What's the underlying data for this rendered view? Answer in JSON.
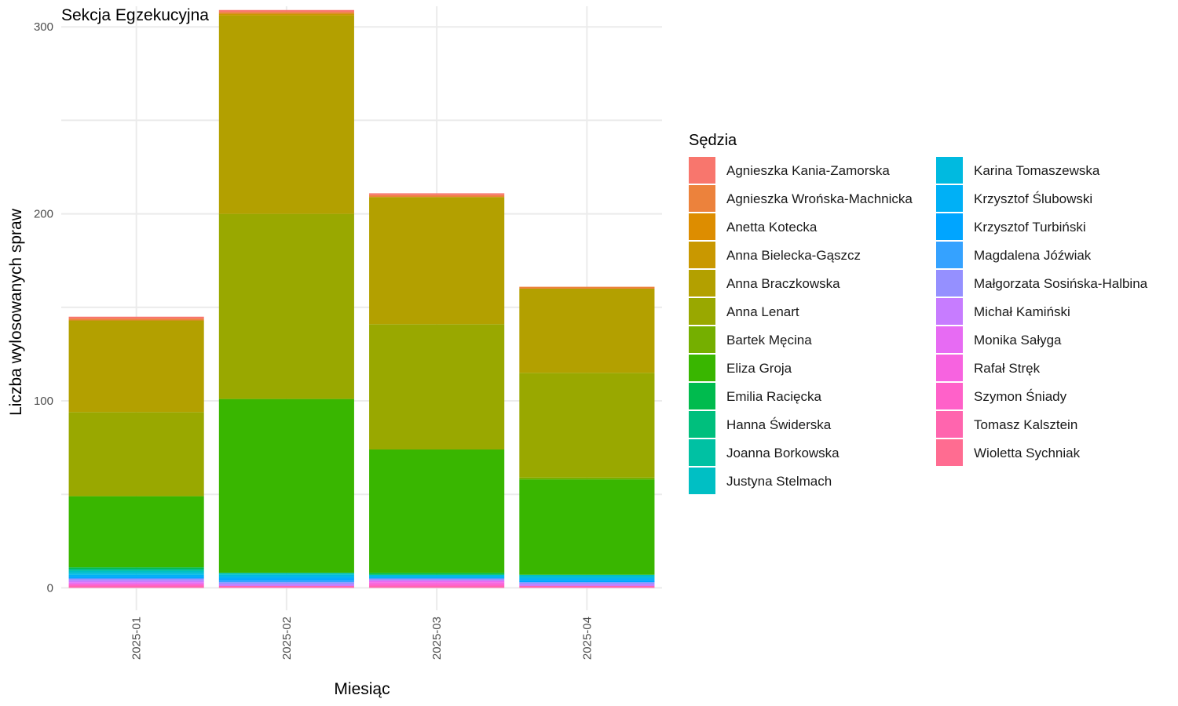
{
  "chart_data": {
    "type": "bar",
    "stacked": true,
    "title": "Sekcja Egzekucyjna",
    "xlabel": "Miesiąc",
    "ylabel": "Liczba wylosowanych spraw",
    "categories": [
      "2025-01",
      "2025-02",
      "2025-03",
      "2025-04"
    ],
    "ylim": [
      -12,
      311
    ],
    "yticks": [
      0,
      100,
      200,
      300
    ],
    "grid": true,
    "legend_title": "Sędzia",
    "legend_position": "right",
    "series": [
      {
        "name": "Agnieszka Kania-Zamorska",
        "color": "#F8766D",
        "values": [
          1,
          1,
          1,
          0
        ]
      },
      {
        "name": "Agnieszka Wrońska-Machnicka",
        "color": "#EC823C",
        "values": [
          1,
          1,
          1,
          1
        ]
      },
      {
        "name": "Anetta Kotecka",
        "color": "#DD8D00",
        "values": [
          0,
          0,
          0,
          0
        ]
      },
      {
        "name": "Anna Bielecka-Gąszcz",
        "color": "#C99800",
        "values": [
          0,
          1,
          0,
          0
        ]
      },
      {
        "name": "Anna Braczkowska",
        "color": "#B3A000",
        "values": [
          49,
          106,
          68,
          45
        ]
      },
      {
        "name": "Anna Lenart",
        "color": "#99A800",
        "values": [
          45,
          99,
          67,
          56
        ]
      },
      {
        "name": "Bartek Męcina",
        "color": "#75AF00",
        "values": [
          0,
          0,
          0,
          1
        ]
      },
      {
        "name": "Eliza Groja",
        "color": "#39B600",
        "values": [
          38,
          93,
          66,
          51
        ]
      },
      {
        "name": "Emilia Racięcka",
        "color": "#00BB4E",
        "values": [
          1,
          0,
          1,
          0
        ]
      },
      {
        "name": "Hanna Świderska",
        "color": "#00BF7D",
        "values": [
          0,
          0,
          0,
          0
        ]
      },
      {
        "name": "Joanna Borkowska",
        "color": "#00C1A3",
        "values": [
          1,
          0,
          0,
          0
        ]
      },
      {
        "name": "Justyna Stelmach",
        "color": "#00BFC4",
        "values": [
          1,
          1,
          0,
          1
        ]
      },
      {
        "name": "Karina Tomaszewska",
        "color": "#00BAE0",
        "values": [
          1,
          1,
          1,
          1
        ]
      },
      {
        "name": "Krzysztof Ślubowski",
        "color": "#00B0F6",
        "values": [
          1,
          1,
          1,
          1
        ]
      },
      {
        "name": "Krzysztof Turbiński",
        "color": "#00A5FF",
        "values": [
          1,
          1,
          0,
          1
        ]
      },
      {
        "name": "Magdalena Jóźwiak",
        "color": "#35A2FF",
        "values": [
          0,
          1,
          0,
          0
        ]
      },
      {
        "name": "Małgorzata Sosińska-Halbina",
        "color": "#9590FF",
        "values": [
          1,
          1,
          1,
          1
        ]
      },
      {
        "name": "Michał Kamiński",
        "color": "#C77CFF",
        "values": [
          1,
          1,
          0,
          1
        ]
      },
      {
        "name": "Monika Sałyga",
        "color": "#E76BF3",
        "values": [
          1,
          0,
          1,
          0
        ]
      },
      {
        "name": "Rafał Stręk",
        "color": "#F763E0",
        "values": [
          0,
          0,
          1,
          0
        ]
      },
      {
        "name": "Szymon Śniady",
        "color": "#FF61C9",
        "values": [
          1,
          0,
          1,
          0
        ]
      },
      {
        "name": "Tomasz Kalsztein",
        "color": "#FF65AE",
        "values": [
          1,
          1,
          1,
          1
        ]
      },
      {
        "name": "Wioletta Sychniak",
        "color": "#FF6C91",
        "values": [
          0,
          0,
          0,
          0
        ]
      }
    ]
  }
}
